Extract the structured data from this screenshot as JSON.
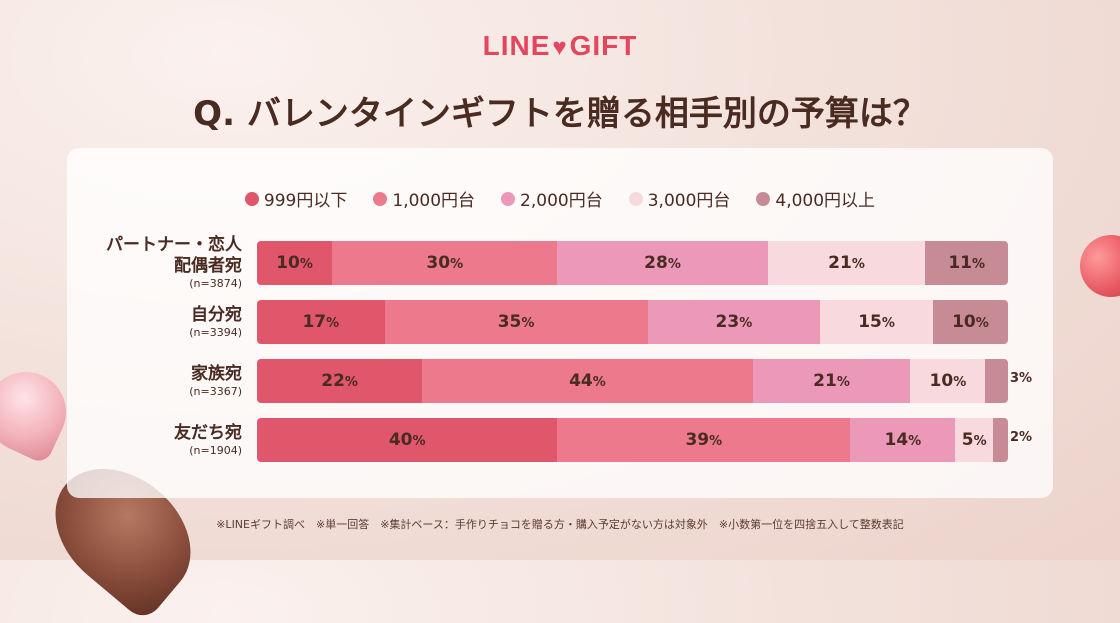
{
  "brand": {
    "line": "LINE",
    "gift": "GIFT"
  },
  "title": "Q. バレンタインギフトを贈る相手別の予算は？",
  "footnote": "※LINEギフト調べ　※単一回答　※集計ベース：手作りチョコを贈る方・購入予定がない方は対象外　※小数第一位を四捨五入して整数表記",
  "chart_data": {
    "type": "bar",
    "orientation": "horizontal",
    "stacked": true,
    "unit": "%",
    "title": "Q. バレンタインギフトを贈る相手別の予算は？",
    "legend": [
      "999円以下",
      "1,000円台",
      "2,000円台",
      "3,000円台",
      "4,000円以上"
    ],
    "colors": [
      "#e0566a",
      "#ec7a8c",
      "#ec98b9",
      "#f8dade",
      "#c68b95"
    ],
    "rows": [
      {
        "label_lines": [
          "パートナー・恋人",
          "配偶者宛"
        ],
        "n": "(n=3874)",
        "values": [
          10,
          30,
          28,
          21,
          11
        ]
      },
      {
        "label_lines": [
          "自分宛"
        ],
        "n": "(n=3394)",
        "values": [
          17,
          35,
          23,
          15,
          10
        ]
      },
      {
        "label_lines": [
          "家族宛"
        ],
        "n": "(n=3367)",
        "values": [
          22,
          44,
          21,
          10,
          3
        ]
      },
      {
        "label_lines": [
          "友だち宛"
        ],
        "n": "(n=1904)",
        "values": [
          40,
          39,
          14,
          5,
          2
        ]
      }
    ]
  }
}
